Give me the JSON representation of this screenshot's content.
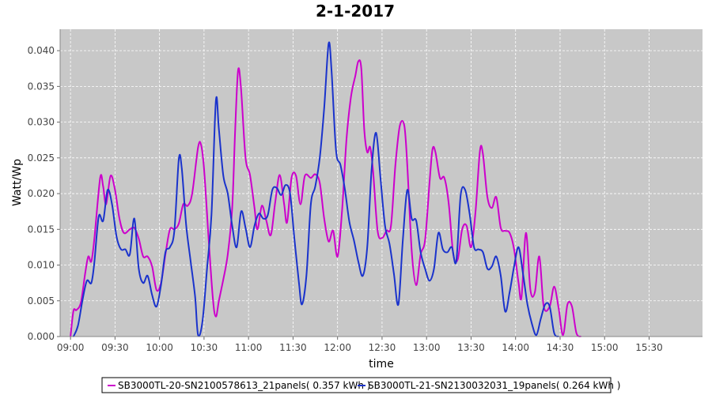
{
  "chart_data": {
    "type": "line",
    "title": "2-1-2017",
    "xlabel": "time",
    "ylabel": "Watt/Wp",
    "xlim": [
      "08:53",
      "16:06"
    ],
    "ylim": [
      0,
      0.043
    ],
    "x_ticks": [
      "09:00",
      "09:30",
      "10:00",
      "10:30",
      "11:00",
      "11:30",
      "12:00",
      "12:30",
      "13:00",
      "13:30",
      "14:00",
      "14:30",
      "15:00",
      "15:30"
    ],
    "y_ticks": [
      "0.000",
      "0.005",
      "0.010",
      "0.015",
      "0.020",
      "0.025",
      "0.030",
      "0.035",
      "0.040"
    ],
    "grid": true,
    "legend_position": "bottom",
    "background": "#c8c8c8",
    "series": [
      {
        "name": "SB3000TL-20-SN2100578613_21panels( 0.357 kWh )",
        "color": "#cc00cc",
        "points": [
          [
            "09:00",
            0.0
          ],
          [
            "09:02",
            0.0036
          ],
          [
            "09:04",
            0.0037
          ],
          [
            "09:07",
            0.0048
          ],
          [
            "09:10",
            0.009
          ],
          [
            "09:12",
            0.0112
          ],
          [
            "09:14",
            0.0105
          ],
          [
            "09:16",
            0.0135
          ],
          [
            "09:20",
            0.0222
          ],
          [
            "09:22",
            0.021
          ],
          [
            "09:24",
            0.0185
          ],
          [
            "09:27",
            0.0225
          ],
          [
            "09:30",
            0.0205
          ],
          [
            "09:33",
            0.0165
          ],
          [
            "09:36",
            0.0145
          ],
          [
            "09:40",
            0.015
          ],
          [
            "09:43",
            0.0152
          ],
          [
            "09:46",
            0.0137
          ],
          [
            "09:49",
            0.0112
          ],
          [
            "09:52",
            0.0112
          ],
          [
            "09:55",
            0.0098
          ],
          [
            "09:58",
            0.0065
          ],
          [
            "10:01",
            0.0075
          ],
          [
            "10:04",
            0.0115
          ],
          [
            "10:07",
            0.015
          ],
          [
            "10:10",
            0.015
          ],
          [
            "10:13",
            0.0158
          ],
          [
            "10:16",
            0.0185
          ],
          [
            "10:19",
            0.0183
          ],
          [
            "10:22",
            0.02
          ],
          [
            "10:26",
            0.0265
          ],
          [
            "10:28",
            0.0268
          ],
          [
            "10:30",
            0.0235
          ],
          [
            "10:33",
            0.014
          ],
          [
            "10:36",
            0.0052
          ],
          [
            "10:38",
            0.0028
          ],
          [
            "10:40",
            0.005
          ],
          [
            "10:43",
            0.008
          ],
          [
            "10:46",
            0.0115
          ],
          [
            "10:49",
            0.018
          ],
          [
            "10:51",
            0.029
          ],
          [
            "10:53",
            0.0373
          ],
          [
            "10:55",
            0.0345
          ],
          [
            "10:58",
            0.025
          ],
          [
            "11:01",
            0.0226
          ],
          [
            "11:04",
            0.018
          ],
          [
            "11:06",
            0.015
          ],
          [
            "11:09",
            0.0183
          ],
          [
            "11:12",
            0.0162
          ],
          [
            "11:15",
            0.0142
          ],
          [
            "11:18",
            0.0188
          ],
          [
            "11:21",
            0.0226
          ],
          [
            "11:24",
            0.0185
          ],
          [
            "11:26",
            0.016
          ],
          [
            "11:29",
            0.0222
          ],
          [
            "11:32",
            0.0225
          ],
          [
            "11:35",
            0.0185
          ],
          [
            "11:38",
            0.0225
          ],
          [
            "11:42",
            0.0222
          ],
          [
            "11:45",
            0.0227
          ],
          [
            "11:48",
            0.0215
          ],
          [
            "11:51",
            0.0165
          ],
          [
            "11:54",
            0.0133
          ],
          [
            "11:57",
            0.0148
          ],
          [
            "12:00",
            0.0112
          ],
          [
            "12:03",
            0.0175
          ],
          [
            "12:06",
            0.0275
          ],
          [
            "12:09",
            0.0335
          ],
          [
            "12:12",
            0.0365
          ],
          [
            "12:14",
            0.0385
          ],
          [
            "12:16",
            0.0375
          ],
          [
            "12:18",
            0.029
          ],
          [
            "12:20",
            0.0258
          ],
          [
            "12:22",
            0.0265
          ],
          [
            "12:24",
            0.023
          ],
          [
            "12:27",
            0.0148
          ],
          [
            "12:30",
            0.0138
          ],
          [
            "12:33",
            0.0148
          ],
          [
            "12:36",
            0.0155
          ],
          [
            "12:39",
            0.024
          ],
          [
            "12:42",
            0.0295
          ],
          [
            "12:45",
            0.0295
          ],
          [
            "12:47",
            0.024
          ],
          [
            "12:50",
            0.012
          ],
          [
            "12:53",
            0.0072
          ],
          [
            "12:56",
            0.0115
          ],
          [
            "12:59",
            0.0135
          ],
          [
            "13:02",
            0.0215
          ],
          [
            "13:04",
            0.0262
          ],
          [
            "13:06",
            0.0258
          ],
          [
            "13:09",
            0.0222
          ],
          [
            "13:12",
            0.0222
          ],
          [
            "13:15",
            0.0185
          ],
          [
            "13:18",
            0.0115
          ],
          [
            "13:21",
            0.0108
          ],
          [
            "13:24",
            0.015
          ],
          [
            "13:27",
            0.0155
          ],
          [
            "13:30",
            0.0125
          ],
          [
            "13:33",
            0.0175
          ],
          [
            "13:36",
            0.026
          ],
          [
            "13:38",
            0.0255
          ],
          [
            "13:41",
            0.0195
          ],
          [
            "13:44",
            0.018
          ],
          [
            "13:47",
            0.0195
          ],
          [
            "13:50",
            0.0152
          ],
          [
            "13:53",
            0.0148
          ],
          [
            "13:56",
            0.0145
          ],
          [
            "13:59",
            0.0122
          ],
          [
            "14:02",
            0.0075
          ],
          [
            "14:04",
            0.0055
          ],
          [
            "14:07",
            0.0145
          ],
          [
            "14:10",
            0.0065
          ],
          [
            "14:13",
            0.0062
          ],
          [
            "14:16",
            0.0112
          ],
          [
            "14:19",
            0.0042
          ],
          [
            "14:23",
            0.0042
          ],
          [
            "14:26",
            0.007
          ],
          [
            "14:29",
            0.004
          ],
          [
            "14:32",
            0.0002
          ],
          [
            "14:35",
            0.0045
          ],
          [
            "14:38",
            0.0042
          ],
          [
            "14:41",
            0.0005
          ],
          [
            "14:44",
            0.0
          ]
        ]
      },
      {
        "name": "SB3000TL-21-SN2130032031_19panels( 0.264 kWh )",
        "color": "#1a33cc",
        "points": [
          [
            "09:02",
            0.0
          ],
          [
            "09:05",
            0.0015
          ],
          [
            "09:08",
            0.005
          ],
          [
            "09:11",
            0.0078
          ],
          [
            "09:14",
            0.0075
          ],
          [
            "09:16",
            0.0102
          ],
          [
            "09:19",
            0.0168
          ],
          [
            "09:22",
            0.0162
          ],
          [
            "09:25",
            0.0205
          ],
          [
            "09:28",
            0.0185
          ],
          [
            "09:31",
            0.014
          ],
          [
            "09:34",
            0.0122
          ],
          [
            "09:37",
            0.0122
          ],
          [
            "09:40",
            0.0115
          ],
          [
            "09:43",
            0.0165
          ],
          [
            "09:46",
            0.0095
          ],
          [
            "09:49",
            0.0075
          ],
          [
            "09:52",
            0.0085
          ],
          [
            "09:55",
            0.0058
          ],
          [
            "09:58",
            0.0042
          ],
          [
            "10:01",
            0.0072
          ],
          [
            "10:04",
            0.0118
          ],
          [
            "10:07",
            0.0125
          ],
          [
            "10:10",
            0.0148
          ],
          [
            "10:13",
            0.0248
          ],
          [
            "10:15",
            0.0235
          ],
          [
            "10:18",
            0.0155
          ],
          [
            "10:21",
            0.0105
          ],
          [
            "10:24",
            0.0055
          ],
          [
            "10:26",
            0.0002
          ],
          [
            "10:29",
            0.0022
          ],
          [
            "10:32",
            0.0095
          ],
          [
            "10:35",
            0.017
          ],
          [
            "10:38",
            0.033
          ],
          [
            "10:40",
            0.029
          ],
          [
            "10:43",
            0.0225
          ],
          [
            "10:46",
            0.02
          ],
          [
            "10:49",
            0.0155
          ],
          [
            "10:52",
            0.0125
          ],
          [
            "10:55",
            0.0175
          ],
          [
            "10:58",
            0.0152
          ],
          [
            "11:01",
            0.0125
          ],
          [
            "11:04",
            0.0155
          ],
          [
            "11:07",
            0.0172
          ],
          [
            "11:10",
            0.0165
          ],
          [
            "11:13",
            0.017
          ],
          [
            "11:16",
            0.0205
          ],
          [
            "11:19",
            0.0208
          ],
          [
            "11:22",
            0.0198
          ],
          [
            "11:25",
            0.0212
          ],
          [
            "11:28",
            0.02
          ],
          [
            "11:31",
            0.0135
          ],
          [
            "11:34",
            0.0075
          ],
          [
            "11:36",
            0.0045
          ],
          [
            "11:39",
            0.0085
          ],
          [
            "11:42",
            0.0185
          ],
          [
            "11:45",
            0.021
          ],
          [
            "11:48",
            0.025
          ],
          [
            "11:51",
            0.032
          ],
          [
            "11:54",
            0.041
          ],
          [
            "11:56",
            0.037
          ],
          [
            "11:59",
            0.026
          ],
          [
            "12:02",
            0.024
          ],
          [
            "12:05",
            0.0205
          ],
          [
            "12:08",
            0.016
          ],
          [
            "12:11",
            0.0135
          ],
          [
            "12:14",
            0.0105
          ],
          [
            "12:17",
            0.0085
          ],
          [
            "12:20",
            0.0125
          ],
          [
            "12:23",
            0.0235
          ],
          [
            "12:26",
            0.0285
          ],
          [
            "12:29",
            0.022
          ],
          [
            "12:32",
            0.0155
          ],
          [
            "12:35",
            0.013
          ],
          [
            "12:38",
            0.0088
          ],
          [
            "12:41",
            0.0045
          ],
          [
            "12:44",
            0.0135
          ],
          [
            "12:47",
            0.0205
          ],
          [
            "12:50",
            0.0165
          ],
          [
            "12:53",
            0.0162
          ],
          [
            "12:56",
            0.0118
          ],
          [
            "12:59",
            0.0095
          ],
          [
            "13:02",
            0.0078
          ],
          [
            "13:05",
            0.0095
          ],
          [
            "13:08",
            0.0145
          ],
          [
            "13:11",
            0.0122
          ],
          [
            "13:14",
            0.0118
          ],
          [
            "13:17",
            0.0125
          ],
          [
            "13:20",
            0.0105
          ],
          [
            "13:23",
            0.0198
          ],
          [
            "13:26",
            0.0205
          ],
          [
            "13:29",
            0.0172
          ],
          [
            "13:32",
            0.0125
          ],
          [
            "13:35",
            0.0122
          ],
          [
            "13:38",
            0.0118
          ],
          [
            "13:41",
            0.0095
          ],
          [
            "13:44",
            0.0098
          ],
          [
            "13:47",
            0.0112
          ],
          [
            "13:50",
            0.0085
          ],
          [
            "13:53",
            0.0035
          ],
          [
            "13:56",
            0.0062
          ],
          [
            "13:59",
            0.0098
          ],
          [
            "14:02",
            0.0125
          ],
          [
            "14:05",
            0.0088
          ],
          [
            "14:08",
            0.0045
          ],
          [
            "14:11",
            0.0018
          ],
          [
            "14:14",
            0.0002
          ],
          [
            "14:17",
            0.0025
          ],
          [
            "14:20",
            0.0045
          ],
          [
            "14:23",
            0.0042
          ],
          [
            "14:26",
            0.0005
          ],
          [
            "14:29",
            0.0
          ]
        ]
      }
    ]
  },
  "legend": {
    "items": [
      {
        "label": "SB3000TL-20-SN2100578613_21panels( 0.357 kWh )",
        "color": "#cc00cc"
      },
      {
        "label": "SB3000TL-21-SN2130032031_19panels( 0.264 kWh )",
        "color": "#1a33cc"
      }
    ]
  }
}
